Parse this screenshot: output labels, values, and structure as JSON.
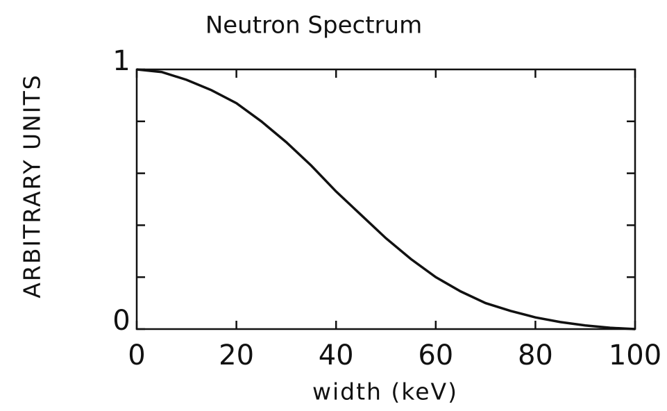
{
  "chart_data": {
    "type": "line",
    "title": "Neutron Spectrum",
    "x_label": "width (keV)",
    "y_label": "ARBITRARY UNITS",
    "x": [
      0,
      5,
      10,
      15,
      20,
      25,
      30,
      35,
      40,
      45,
      50,
      55,
      60,
      65,
      70,
      75,
      80,
      85,
      90,
      95,
      100
    ],
    "series": [
      {
        "color": "#111111",
        "values": [
          1.0,
          0.99,
          0.96,
          0.92,
          0.87,
          0.8,
          0.72,
          0.63,
          0.53,
          0.44,
          0.35,
          0.27,
          0.2,
          0.145,
          0.1,
          0.07,
          0.045,
          0.027,
          0.014,
          0.005,
          0.0
        ]
      }
    ],
    "xlim": [
      0,
      100
    ],
    "xticks": [
      0,
      20,
      40,
      60,
      80,
      100
    ],
    "ylim": [
      0,
      1
    ],
    "yticks": [
      0,
      1
    ],
    "yminor_ticks": [
      0.2,
      0.4,
      0.6,
      0.8
    ]
  }
}
